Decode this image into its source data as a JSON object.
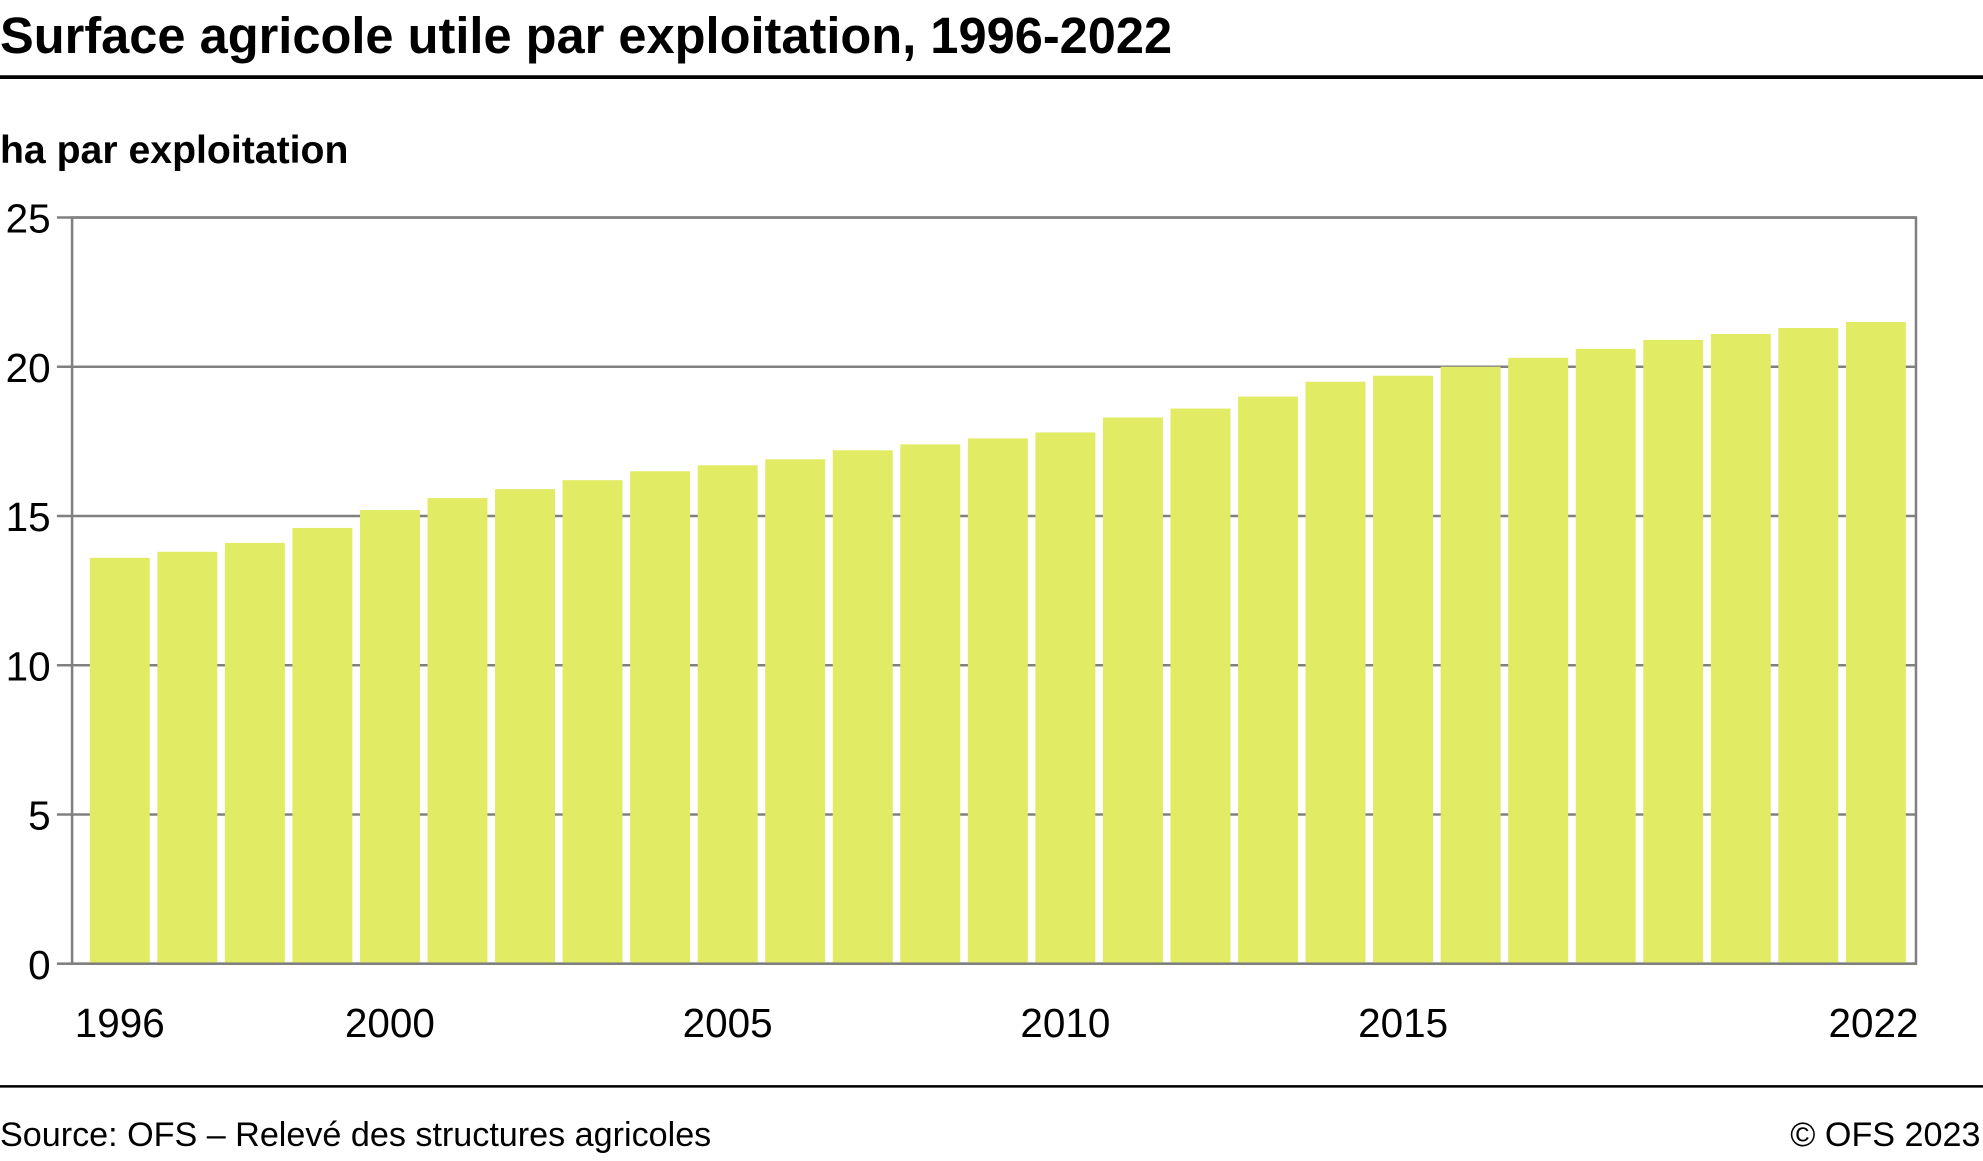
{
  "chart_data": {
    "type": "bar",
    "title": "Surface agricole utile par exploitation, 1996-2022",
    "ylabel": "ha par exploitation",
    "xlabel": "",
    "categories": [
      "1996",
      "1997",
      "1998",
      "1999",
      "2000",
      "2001",
      "2002",
      "2003",
      "2004",
      "2005",
      "2006",
      "2007",
      "2008",
      "2009",
      "2010",
      "2011",
      "2012",
      "2013",
      "2014",
      "2015",
      "2016",
      "2017",
      "2018",
      "2019",
      "2020",
      "2021",
      "2022"
    ],
    "values": [
      13.6,
      13.8,
      14.1,
      14.6,
      15.2,
      15.6,
      15.9,
      16.2,
      16.5,
      16.7,
      16.9,
      17.2,
      17.4,
      17.6,
      17.8,
      18.3,
      18.6,
      19.0,
      19.5,
      19.7,
      20.0,
      20.3,
      20.6,
      20.9,
      21.1,
      21.3,
      21.5
    ],
    "ylim": [
      0,
      25
    ],
    "yticks": [
      "0",
      "5",
      "10",
      "15",
      "20",
      "25"
    ],
    "xtick_labels": [
      "1996",
      "2000",
      "2005",
      "2010",
      "2015",
      "2022"
    ],
    "grid": true,
    "bar_color": "#e1eb63",
    "grid_color": "#808080"
  },
  "footer": {
    "source": "Source: OFS – Relevé des structures agricoles",
    "copyright": "© OFS 2023"
  }
}
